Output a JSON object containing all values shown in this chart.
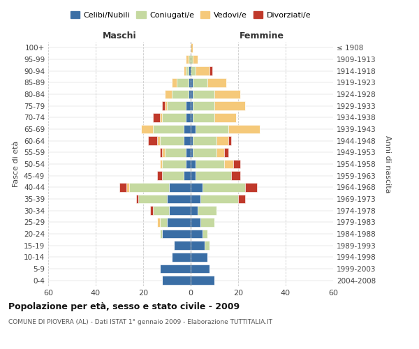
{
  "age_groups": [
    "0-4",
    "5-9",
    "10-14",
    "15-19",
    "20-24",
    "25-29",
    "30-34",
    "35-39",
    "40-44",
    "45-49",
    "50-54",
    "55-59",
    "60-64",
    "65-69",
    "70-74",
    "75-79",
    "80-84",
    "85-89",
    "90-94",
    "95-99",
    "100+"
  ],
  "birth_years": [
    "2004-2008",
    "1999-2003",
    "1994-1998",
    "1989-1993",
    "1984-1988",
    "1979-1983",
    "1974-1978",
    "1969-1973",
    "1964-1968",
    "1959-1963",
    "1954-1958",
    "1949-1953",
    "1944-1948",
    "1939-1943",
    "1934-1938",
    "1929-1933",
    "1924-1928",
    "1919-1923",
    "1914-1918",
    "1909-1913",
    "≤ 1908"
  ],
  "colors": {
    "celibi": "#3a6ea5",
    "coniugati": "#c5d9a0",
    "vedovi": "#f5c97a",
    "divorziati": "#c0392b"
  },
  "males": {
    "celibi": [
      12,
      13,
      8,
      7,
      12,
      10,
      9,
      10,
      9,
      3,
      2,
      2,
      3,
      3,
      2,
      2,
      1,
      1,
      1,
      0,
      0
    ],
    "coniugati": [
      0,
      0,
      0,
      0,
      1,
      3,
      7,
      12,
      17,
      9,
      10,
      9,
      10,
      13,
      10,
      8,
      7,
      5,
      1,
      1,
      0
    ],
    "vedovi": [
      0,
      0,
      0,
      0,
      0,
      1,
      0,
      0,
      1,
      0,
      1,
      1,
      1,
      5,
      1,
      1,
      3,
      2,
      1,
      1,
      0
    ],
    "divorziati": [
      0,
      0,
      0,
      0,
      0,
      0,
      1,
      1,
      3,
      2,
      0,
      1,
      4,
      0,
      3,
      1,
      0,
      0,
      0,
      0,
      0
    ]
  },
  "females": {
    "celibi": [
      10,
      8,
      7,
      6,
      5,
      4,
      3,
      4,
      5,
      2,
      2,
      1,
      1,
      2,
      1,
      1,
      1,
      1,
      0,
      0,
      0
    ],
    "coniugati": [
      0,
      0,
      0,
      2,
      2,
      6,
      8,
      16,
      18,
      15,
      12,
      10,
      10,
      14,
      9,
      9,
      9,
      6,
      2,
      1,
      0
    ],
    "vedovi": [
      0,
      0,
      0,
      0,
      0,
      0,
      0,
      0,
      0,
      0,
      4,
      3,
      5,
      13,
      9,
      13,
      11,
      8,
      6,
      2,
      1
    ],
    "divorziati": [
      0,
      0,
      0,
      0,
      0,
      0,
      0,
      3,
      5,
      4,
      3,
      2,
      1,
      0,
      0,
      0,
      0,
      0,
      1,
      0,
      0
    ]
  },
  "xlim": 60,
  "title": "Popolazione per età, sesso e stato civile - 2009",
  "subtitle": "COMUNE DI PIOVERA (AL) - Dati ISTAT 1° gennaio 2009 - Elaborazione TUTTITALIA.IT",
  "xlabel_left": "Maschi",
  "xlabel_right": "Femmine",
  "ylabel_left": "Fasce di età",
  "ylabel_right": "Anni di nascita",
  "legend_labels": [
    "Celibi/Nubili",
    "Coniugati/e",
    "Vedovi/e",
    "Divorziati/e"
  ],
  "bg_color": "#ffffff",
  "grid_color": "#cccccc"
}
